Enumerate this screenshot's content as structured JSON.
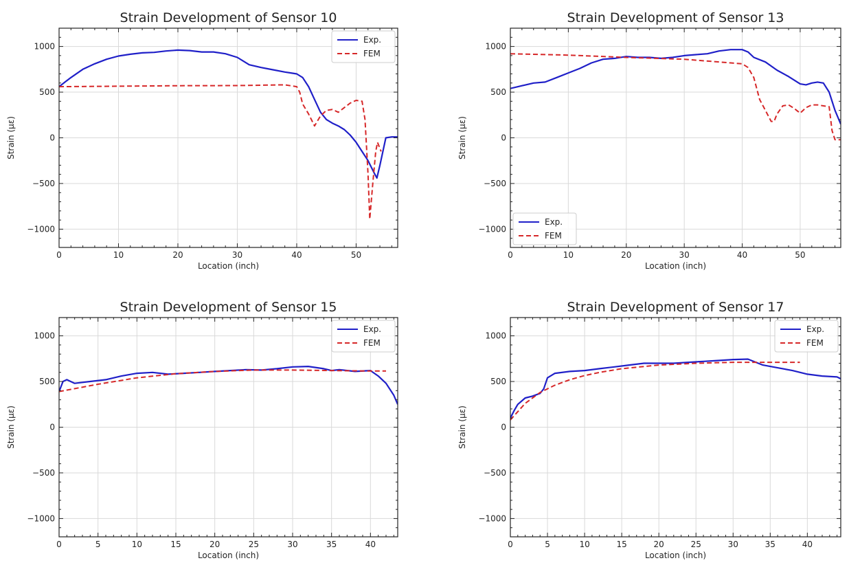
{
  "colors": {
    "exp": "#1f1fc8",
    "fem": "#d62728",
    "grid": "#d9d9d9",
    "axis": "#222222"
  },
  "chart_data": [
    {
      "type": "line",
      "title": "Strain Development of Sensor 10",
      "xlabel": "Location (inch)",
      "ylabel": "Strain (με)",
      "xlim": [
        0,
        57
      ],
      "ylim": [
        -1200,
        1200
      ],
      "xticks": [
        0,
        10,
        20,
        30,
        40,
        50
      ],
      "xtick_labels": [
        "0",
        "10",
        "20",
        "30",
        "40",
        "50"
      ],
      "yticks": [
        -1000,
        -500,
        0,
        500,
        1000
      ],
      "ytick_labels": [
        "−1000",
        "−500",
        "0",
        "500",
        "1000"
      ],
      "grid": true,
      "legend_position": "top-right",
      "series": [
        {
          "name": "Exp.",
          "style": "solid",
          "x": [
            0,
            1,
            2,
            4,
            6,
            8,
            10,
            12,
            14,
            16,
            18,
            20,
            22,
            24,
            26,
            28,
            30,
            31,
            32,
            34,
            36,
            38,
            39,
            40,
            41,
            42,
            43,
            44,
            45,
            46,
            47,
            48,
            49,
            50,
            51,
            52,
            53,
            53.5,
            54,
            55,
            56,
            57
          ],
          "y": [
            560,
            610,
            660,
            750,
            810,
            860,
            895,
            915,
            930,
            935,
            950,
            960,
            955,
            940,
            940,
            920,
            880,
            840,
            800,
            770,
            745,
            720,
            710,
            700,
            660,
            560,
            420,
            280,
            200,
            160,
            130,
            90,
            30,
            -50,
            -150,
            -250,
            -380,
            -440,
            -300,
            0,
            10,
            10
          ]
        },
        {
          "name": "FEM",
          "style": "dashed",
          "x": [
            0,
            10,
            20,
            30,
            38,
            40,
            40.5,
            41,
            42,
            43,
            44,
            45,
            46,
            47,
            48,
            49,
            50,
            51,
            51.5,
            52,
            52.3,
            52.8,
            53.3,
            53.6,
            54.2
          ],
          "y": [
            560,
            565,
            570,
            572,
            580,
            560,
            500,
            370,
            260,
            130,
            240,
            300,
            310,
            280,
            330,
            380,
            410,
            400,
            200,
            -400,
            -890,
            -500,
            -150,
            -50,
            -150
          ]
        }
      ]
    },
    {
      "type": "line",
      "title": "Strain Development of Sensor 13",
      "xlabel": "Location (inch)",
      "ylabel": "Strain (με)",
      "xlim": [
        0,
        57
      ],
      "ylim": [
        -1200,
        1200
      ],
      "xticks": [
        0,
        10,
        20,
        30,
        40,
        50
      ],
      "xtick_labels": [
        "0",
        "10",
        "20",
        "30",
        "40",
        "50"
      ],
      "yticks": [
        -1000,
        -500,
        0,
        500,
        1000
      ],
      "ytick_labels": [
        "−1000",
        "−500",
        "0",
        "500",
        "1000"
      ],
      "grid": true,
      "legend_position": "bottom-left",
      "series": [
        {
          "name": "Exp.",
          "style": "solid",
          "x": [
            0,
            2,
            4,
            6,
            8,
            10,
            12,
            14,
            16,
            18,
            20,
            22,
            24,
            26,
            28,
            30,
            32,
            34,
            36,
            38,
            40,
            41,
            42,
            44,
            46,
            48,
            50,
            51,
            52,
            53,
            54,
            55,
            56,
            57
          ],
          "y": [
            540,
            570,
            600,
            610,
            660,
            710,
            760,
            820,
            860,
            870,
            890,
            880,
            880,
            870,
            880,
            900,
            910,
            920,
            950,
            965,
            965,
            940,
            880,
            830,
            740,
            670,
            590,
            580,
            600,
            610,
            600,
            500,
            300,
            150
          ]
        },
        {
          "name": "FEM",
          "style": "dashed",
          "x": [
            0,
            10,
            20,
            30,
            38,
            40,
            41,
            42,
            43,
            44,
            45,
            45.5,
            46,
            47,
            48,
            49,
            50,
            51,
            52,
            53,
            54,
            55,
            55.5,
            56,
            57
          ],
          "y": [
            920,
            905,
            880,
            860,
            820,
            810,
            770,
            660,
            420,
            300,
            180,
            180,
            260,
            350,
            360,
            320,
            270,
            330,
            360,
            360,
            350,
            340,
            80,
            -20,
            -20
          ]
        }
      ]
    },
    {
      "type": "line",
      "title": "Strain Development of Sensor 15",
      "xlabel": "Location (inch)",
      "ylabel": "Strain (με)",
      "xlim": [
        0,
        43.5
      ],
      "ylim": [
        -1200,
        1200
      ],
      "xticks": [
        0,
        5,
        10,
        15,
        20,
        25,
        30,
        35,
        40
      ],
      "xtick_labels": [
        "0",
        "5",
        "10",
        "15",
        "20",
        "25",
        "30",
        "35",
        "40"
      ],
      "yticks": [
        -1000,
        -500,
        0,
        500,
        1000
      ],
      "ytick_labels": [
        "−1000",
        "−500",
        "0",
        "500",
        "1000"
      ],
      "grid": true,
      "legend_position": "top-right",
      "series": [
        {
          "name": "Exp.",
          "style": "solid",
          "x": [
            0,
            0.5,
            1,
            2,
            4,
            6,
            8,
            10,
            12,
            14,
            16,
            18,
            20,
            22,
            24,
            26,
            28,
            30,
            32,
            34,
            35,
            36,
            38,
            40,
            41,
            42,
            43,
            43.5
          ],
          "y": [
            390,
            500,
            520,
            480,
            500,
            520,
            560,
            590,
            600,
            580,
            590,
            600,
            610,
            620,
            630,
            625,
            640,
            660,
            665,
            640,
            620,
            630,
            610,
            620,
            560,
            480,
            350,
            250
          ]
        },
        {
          "name": "FEM",
          "style": "dashed",
          "x": [
            0,
            5,
            10,
            15,
            20,
            25,
            30,
            35,
            40,
            42
          ],
          "y": [
            390,
            470,
            540,
            585,
            610,
            625,
            625,
            620,
            615,
            615
          ]
        }
      ]
    },
    {
      "type": "line",
      "title": "Strain Development of Sensor 17",
      "xlabel": "Location (inch)",
      "ylabel": "Strain (με)",
      "xlim": [
        0,
        44.5
      ],
      "ylim": [
        -1200,
        1200
      ],
      "xticks": [
        0,
        5,
        10,
        15,
        20,
        25,
        30,
        35,
        40
      ],
      "xtick_labels": [
        "0",
        "5",
        "10",
        "15",
        "20",
        "25",
        "30",
        "35",
        "40"
      ],
      "yticks": [
        -1000,
        -500,
        0,
        500,
        1000
      ],
      "ytick_labels": [
        "−1000",
        "−500",
        "0",
        "500",
        "1000"
      ],
      "grid": true,
      "legend_position": "top-right",
      "series": [
        {
          "name": "Exp.",
          "style": "solid",
          "x": [
            0,
            0.5,
            1,
            2,
            3,
            4,
            4.5,
            5,
            6,
            8,
            10,
            12,
            14,
            16,
            18,
            20,
            22,
            24,
            26,
            28,
            30,
            32,
            34,
            36,
            38,
            40,
            42,
            44,
            44.5
          ],
          "y": [
            100,
            180,
            250,
            320,
            340,
            370,
            420,
            540,
            590,
            610,
            620,
            640,
            660,
            680,
            700,
            700,
            700,
            710,
            720,
            730,
            740,
            745,
            680,
            650,
            620,
            580,
            560,
            550,
            530
          ]
        },
        {
          "name": "FEM",
          "style": "dashed",
          "x": [
            0,
            2,
            4,
            6,
            8,
            10,
            12,
            15,
            20,
            25,
            30,
            35,
            39
          ],
          "y": [
            80,
            260,
            380,
            460,
            520,
            565,
            600,
            640,
            680,
            700,
            710,
            710,
            710
          ]
        }
      ]
    }
  ]
}
